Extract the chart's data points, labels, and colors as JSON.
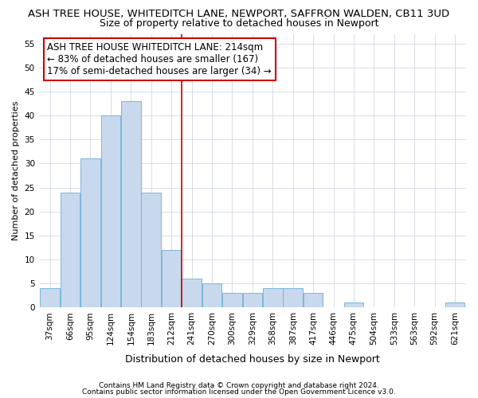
{
  "title1": "ASH TREE HOUSE, WHITEDITCH LANE, NEWPORT, SAFFRON WALDEN, CB11 3UD",
  "title2": "Size of property relative to detached houses in Newport",
  "xlabel": "Distribution of detached houses by size in Newport",
  "ylabel": "Number of detached properties",
  "categories": [
    "37sqm",
    "66sqm",
    "95sqm",
    "124sqm",
    "154sqm",
    "183sqm",
    "212sqm",
    "241sqm",
    "270sqm",
    "300sqm",
    "329sqm",
    "358sqm",
    "387sqm",
    "417sqm",
    "446sqm",
    "475sqm",
    "504sqm",
    "533sqm",
    "563sqm",
    "592sqm",
    "621sqm"
  ],
  "values": [
    4,
    24,
    31,
    40,
    43,
    24,
    12,
    6,
    5,
    3,
    3,
    4,
    4,
    3,
    0,
    1,
    0,
    0,
    0,
    0,
    1
  ],
  "bar_color": "#c8d9ed",
  "bar_edge_color": "#6baed6",
  "vline_color": "#cc0000",
  "vline_x": 6.5,
  "ylim": [
    0,
    57
  ],
  "yticks": [
    0,
    5,
    10,
    15,
    20,
    25,
    30,
    35,
    40,
    45,
    50,
    55
  ],
  "annotation_line1": "ASH TREE HOUSE WHITEDITCH LANE: 214sqm",
  "annotation_line2": "← 83% of detached houses are smaller (167)",
  "annotation_line3": "17% of semi-detached houses are larger (34) →",
  "annotation_box_color": "#ffffff",
  "annotation_box_edge": "#cc0000",
  "footer1": "Contains HM Land Registry data © Crown copyright and database right 2024.",
  "footer2": "Contains public sector information licensed under the Open Government Licence v3.0.",
  "bg_color": "#ffffff",
  "grid_color": "#c8d0dc",
  "title1_fontsize": 9.5,
  "title2_fontsize": 9,
  "xlabel_fontsize": 9,
  "ylabel_fontsize": 8,
  "annot_fontsize": 8.5,
  "tick_fontsize": 7.5,
  "footer_fontsize": 6.5
}
